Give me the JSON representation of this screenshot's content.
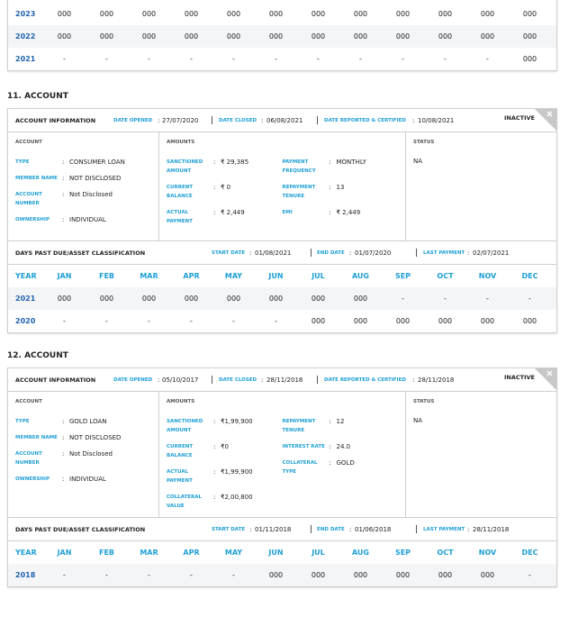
{
  "top_table": {
    "rows": [
      {
        "year": "2023",
        "cells": [
          "000",
          "000",
          "000",
          "000",
          "000",
          "000",
          "000",
          "000",
          "000",
          "000",
          "000",
          "000"
        ]
      },
      {
        "year": "2022",
        "cells": [
          "000",
          "000",
          "000",
          "000",
          "000",
          "000",
          "000",
          "000",
          "000",
          "000",
          "000",
          "000"
        ]
      },
      {
        "year": "2021",
        "cells": [
          "-",
          "-",
          "-",
          "-",
          "-",
          "-",
          "-",
          "-",
          "-",
          "-",
          "-",
          "000"
        ]
      }
    ]
  },
  "accounts": [
    {
      "heading": "11. ACCOUNT",
      "info_title": "ACCOUNT INFORMATION",
      "date_opened_label": "DATE OPENED",
      "date_opened": "27/07/2020",
      "date_closed_label": "DATE CLOSED",
      "date_closed": "06/08/2021",
      "date_reported_label": "DATE REPORTED & CERTIFIED",
      "date_reported": "10/08/2021",
      "status_badge": "INACTIVE",
      "account": {
        "title": "ACCOUNT",
        "fields": [
          {
            "label": "TYPE",
            "value": "CONSUMER LOAN"
          },
          {
            "label": "MEMBER NAME",
            "value": "NOT DISCLOSED"
          },
          {
            "label": "ACCOUNT NUMBER",
            "value": "Not Disclosed"
          },
          {
            "label": "OWNERSHIP",
            "value": "INDIVIDUAL"
          }
        ]
      },
      "amounts": {
        "title": "AMOUNTS",
        "left": [
          {
            "label": "SANCTIONED AMOUNT",
            "value": "₹ 29,385"
          },
          {
            "label": "CURRENT BALANCE",
            "value": "₹ 0"
          },
          {
            "label": "ACTUAL PAYMENT",
            "value": "₹ 2,449"
          }
        ],
        "right": [
          {
            "label": "PAYMENT FREQUENCY",
            "value": "MONTHLY"
          },
          {
            "label": "REPAYMENT TENURE",
            "value": "13"
          },
          {
            "label": "EMI",
            "value": "₹ 2,449"
          }
        ]
      },
      "status": {
        "title": "STATUS",
        "value": "NA"
      },
      "dpd": {
        "title": "DAYS PAST DUE/ASSET CLASSIFICATION",
        "start_label": "START DATE",
        "start": "01/08/2021",
        "end_label": "END DATE",
        "end": "01/07/2020",
        "last_label": "LAST PAYMENT",
        "last": "02/07/2021",
        "header": [
          "YEAR",
          "JAN",
          "FEB",
          "MAR",
          "APR",
          "MAY",
          "JUN",
          "JUL",
          "AUG",
          "SEP",
          "OCT",
          "NOV",
          "DEC"
        ],
        "rows": [
          {
            "year": "2021",
            "cells": [
              "000",
              "000",
              "000",
              "000",
              "000",
              "000",
              "000",
              "000",
              "-",
              "-",
              "-",
              "-"
            ]
          },
          {
            "year": "2020",
            "cells": [
              "-",
              "-",
              "-",
              "-",
              "-",
              "-",
              "000",
              "000",
              "000",
              "000",
              "000",
              "000"
            ]
          }
        ]
      }
    },
    {
      "heading": "12. ACCOUNT",
      "info_title": "ACCOUNT INFORMATION",
      "date_opened_label": "DATE OPENED",
      "date_opened": "05/10/2017",
      "date_closed_label": "DATE CLOSED",
      "date_closed": "28/11/2018",
      "date_reported_label": "DATE REPORTED & CERTIFIED",
      "date_reported": "28/11/2018",
      "status_badge": "INACTIVE",
      "account": {
        "title": "ACCOUNT",
        "fields": [
          {
            "label": "TYPE",
            "value": "GOLD LOAN"
          },
          {
            "label": "MEMBER NAME",
            "value": "NOT DISCLOSED"
          },
          {
            "label": "ACCOUNT NUMBER",
            "value": "Not Disclosed"
          },
          {
            "label": "OWNERSHIP",
            "value": "INDIVIDUAL"
          }
        ]
      },
      "amounts": {
        "title": "AMOUNTS",
        "left": [
          {
            "label": "SANCTIONED AMOUNT",
            "value": "₹1,99,900"
          },
          {
            "label": "CURRENT BALANCE",
            "value": "₹0"
          },
          {
            "label": "ACTUAL PAYMENT",
            "value": "₹1,99,900"
          },
          {
            "label": "COLLATERAL VALUE",
            "value": "₹2,00,800"
          }
        ],
        "right": [
          {
            "label": "REPAYMENT TENURE",
            "value": "12"
          },
          {
            "label": "INTEREST RATE",
            "value": "24.0"
          },
          {
            "label": "COLLATERAL TYPE",
            "value": "GOLD"
          }
        ]
      },
      "status": {
        "title": "STATUS",
        "value": "NA"
      },
      "dpd": {
        "title": "DAYS PAST DUE/ASSET CLASSIFICATION",
        "start_label": "START DATE",
        "start": "01/11/2018",
        "end_label": "END DATE",
        "end": "01/06/2018",
        "last_label": "LAST PAYMENT",
        "last": "28/11/2018",
        "header": [
          "YEAR",
          "JAN",
          "FEB",
          "MAR",
          "APR",
          "MAY",
          "JUN",
          "JUL",
          "AUG",
          "SEP",
          "OCT",
          "NOV",
          "DEC"
        ],
        "rows": [
          {
            "year": "2018",
            "cells": [
              "-",
              "-",
              "-",
              "-",
              "-",
              "000",
              "000",
              "000",
              "000",
              "000",
              "000",
              "-"
            ]
          }
        ]
      }
    }
  ]
}
